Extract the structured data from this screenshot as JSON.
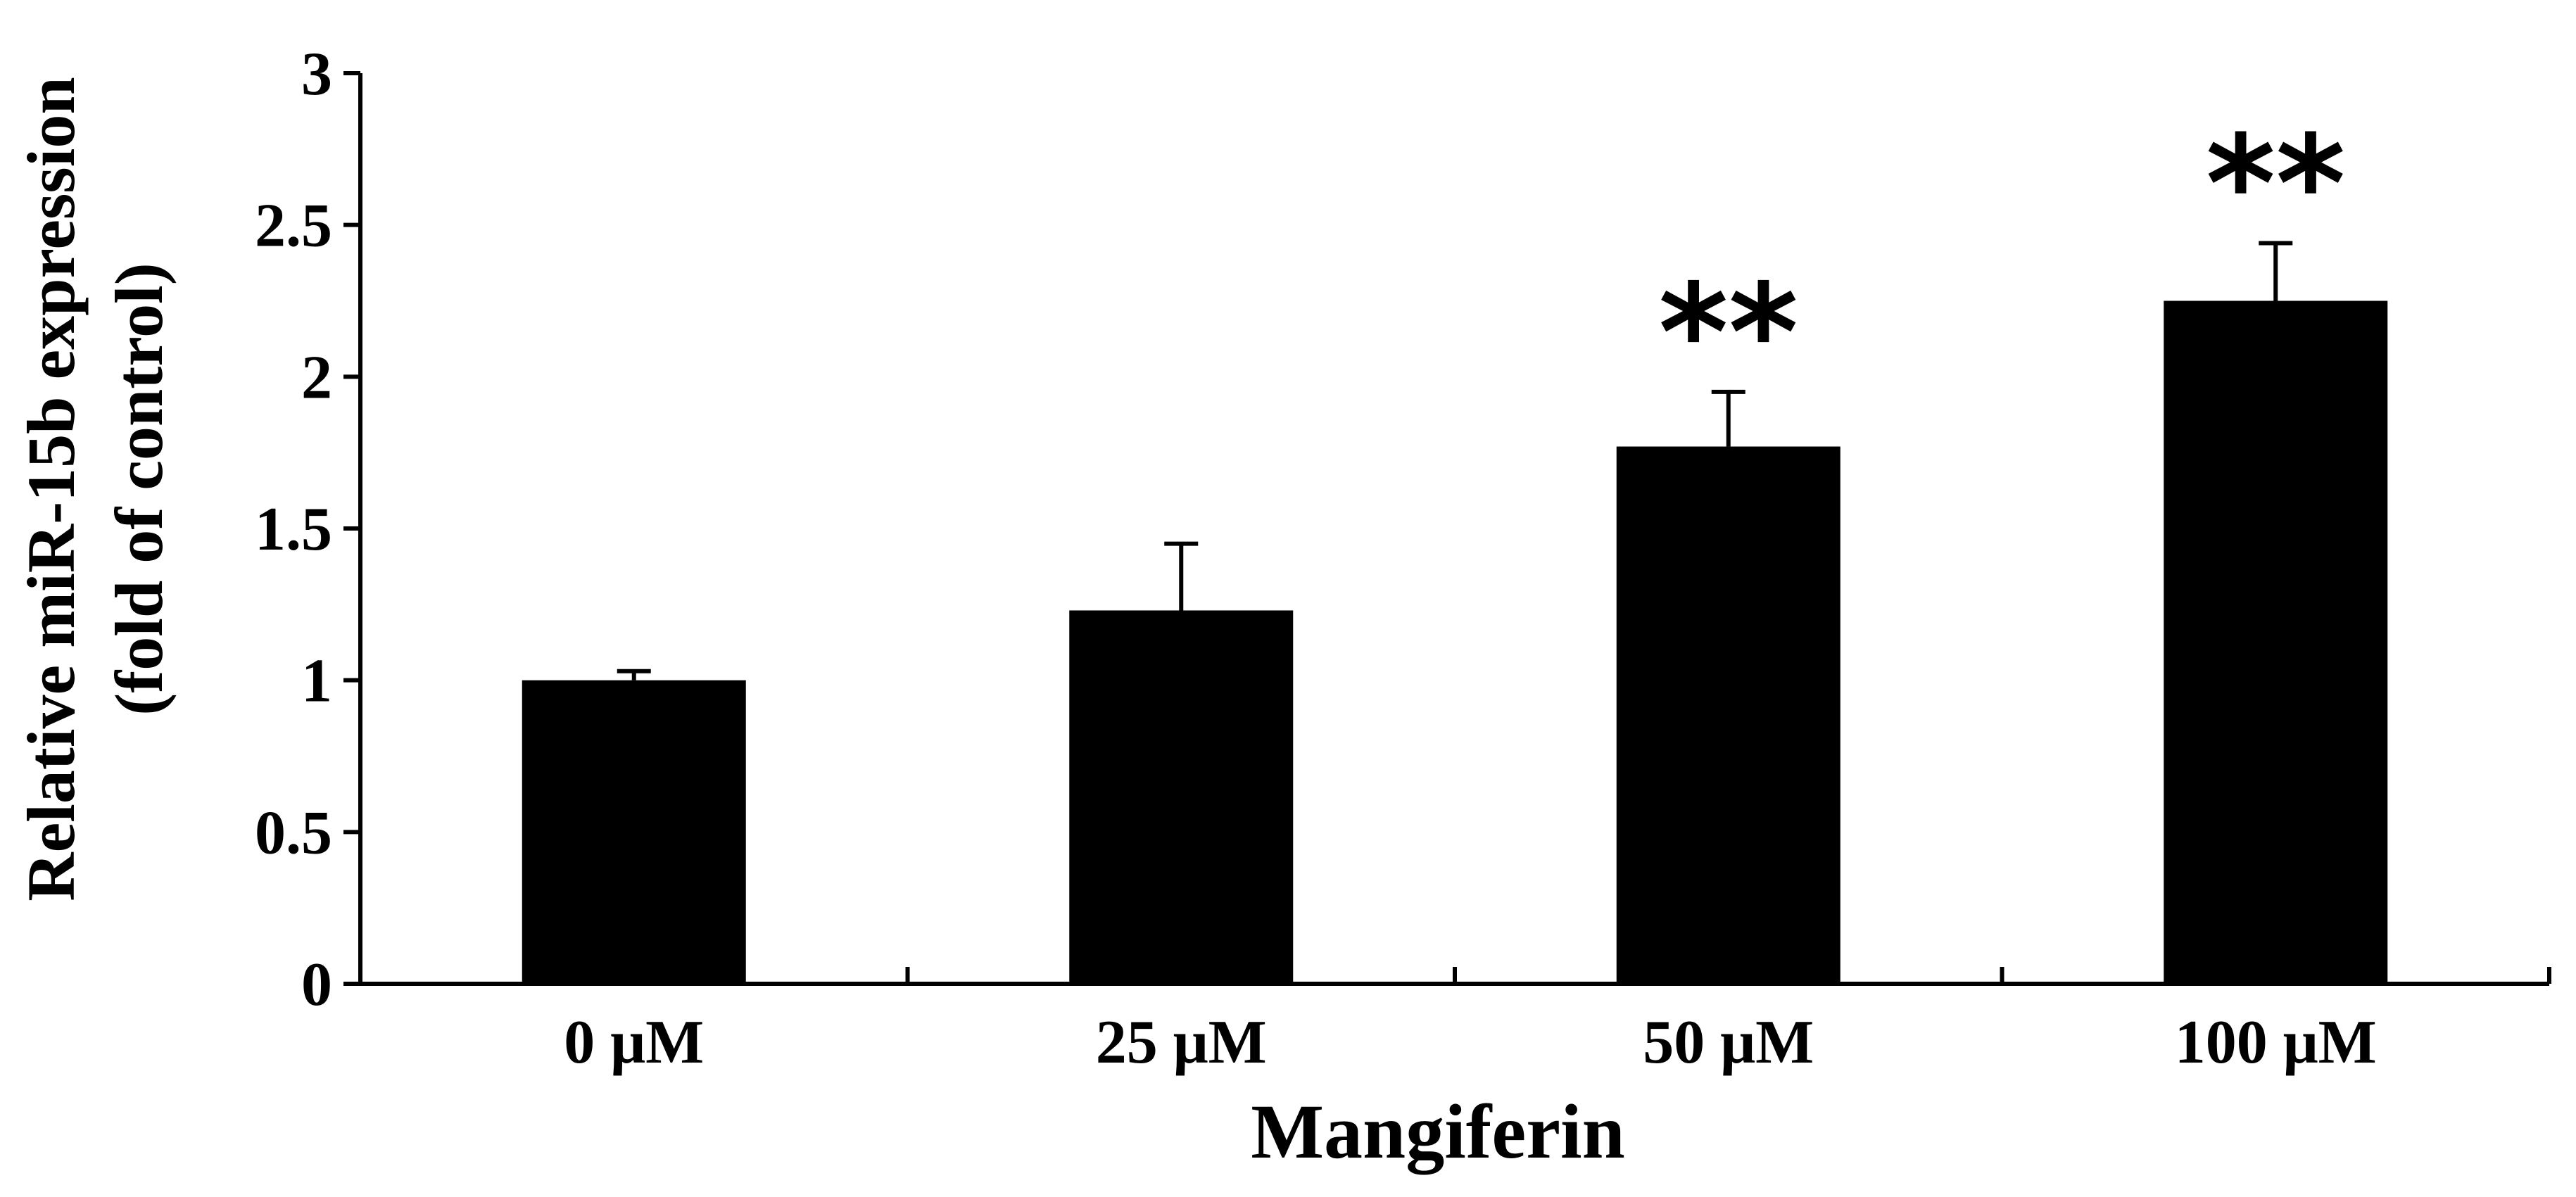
{
  "chart_data": {
    "type": "bar",
    "categories": [
      "0 μM",
      "25 μM",
      "50 μM",
      "100 μM"
    ],
    "values": [
      1.0,
      1.23,
      1.77,
      2.25
    ],
    "errors": [
      0.03,
      0.22,
      0.18,
      0.19
    ],
    "annotations": [
      "",
      "",
      "**",
      "**"
    ],
    "ylim": [
      0,
      3
    ],
    "yticks": [
      "0",
      "0.5",
      "1",
      "1.5",
      "2",
      "2.5",
      "3"
    ],
    "ytick_values": [
      0,
      0.5,
      1,
      1.5,
      2,
      2.5,
      3
    ],
    "xlabel": "Mangiferin",
    "ylabel_line1": "Relative miR-15b expression",
    "ylabel_line2": "(fold of control)",
    "bar_color": "#000000",
    "grid": false,
    "legend": "none"
  }
}
